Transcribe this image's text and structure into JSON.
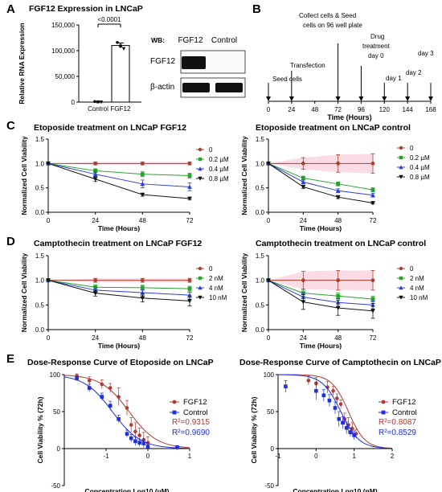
{
  "panels": {
    "A": "A",
    "B": "B",
    "C": "C",
    "D": "D",
    "E": "E"
  },
  "chart_data": [
    {
      "type": "bar",
      "title": "FGF12 Expression in LNCaP",
      "ylabel": "Relative RNA Expression",
      "categories": [
        "Control",
        "FGF12"
      ],
      "values": [
        1,
        110000
      ],
      "points": [
        [
          1000,
          500,
          200
        ],
        [
          116000,
          109000,
          104000
        ]
      ],
      "errors": [
        500,
        5000
      ],
      "ylim": [
        0,
        150000
      ],
      "yticks": [
        "0",
        "50,000",
        "100,000",
        "150,000"
      ],
      "annotation": "<0.0001"
    },
    {
      "type": "table",
      "title": "Western blot",
      "wb_label": "WB:",
      "lanes": [
        "FGF12",
        "Control"
      ],
      "rows": [
        "FGF12",
        "β-actin"
      ]
    },
    {
      "type": "table",
      "title": "Timeline",
      "xlabel": "Time (Hours)",
      "ticks": [
        0,
        24,
        48,
        72,
        96,
        120,
        144,
        168
      ],
      "events": [
        {
          "hour": 0,
          "label": "Seed cells"
        },
        {
          "hour": 24,
          "label": "Transfection"
        },
        {
          "hour": 72,
          "label": "Collect cells & Seed cells on 96 well plate"
        },
        {
          "hour": 96,
          "label": "Drug treatment day 0"
        },
        {
          "hour": 120,
          "label": "day 1"
        },
        {
          "hour": 144,
          "label": "day 2"
        },
        {
          "hour": 168,
          "label": "day 3"
        }
      ]
    },
    {
      "type": "line",
      "title": "Etoposide treatment on LNCaP FGF12",
      "xlabel": "Time (Hours)",
      "ylabel": "Normalized Cell Viability",
      "x": [
        0,
        24,
        48,
        72
      ],
      "ylim": [
        0,
        1.5
      ],
      "yticks": [
        "0.0",
        "0.5",
        "1.0",
        "1.5"
      ],
      "series": [
        {
          "name": "0",
          "values": [
            1.0,
            1.0,
            1.0,
            1.0
          ],
          "errors": [
            0,
            0.03,
            0.03,
            0.03
          ]
        },
        {
          "name": "0.2 µM",
          "values": [
            1.0,
            0.85,
            0.78,
            0.75
          ],
          "errors": [
            0,
            0.04,
            0.05,
            0.05
          ]
        },
        {
          "name": "0.4 µM",
          "values": [
            1.0,
            0.78,
            0.58,
            0.52
          ],
          "errors": [
            0,
            0.05,
            0.08,
            0.08
          ]
        },
        {
          "name": "0.8 µM",
          "values": [
            1.0,
            0.68,
            0.36,
            0.28
          ],
          "errors": [
            0,
            0.05,
            0.03,
            0.02
          ]
        }
      ]
    },
    {
      "type": "line",
      "title": "Etoposide treatment on LNCaP control",
      "xlabel": "Time (Hours)",
      "ylabel": "Normalized Cell Viability",
      "x": [
        0,
        24,
        48,
        72
      ],
      "ylim": [
        0,
        1.5
      ],
      "yticks": [
        "0.0",
        "0.5",
        "1.0",
        "1.5"
      ],
      "series": [
        {
          "name": "0",
          "values": [
            1.0,
            1.0,
            1.0,
            1.0
          ],
          "errors": [
            0,
            0.12,
            0.18,
            0.2
          ]
        },
        {
          "name": "0.2 µM",
          "values": [
            1.0,
            0.7,
            0.58,
            0.46
          ],
          "errors": [
            0,
            0.04,
            0.04,
            0.04
          ]
        },
        {
          "name": "0.4 µM",
          "values": [
            1.0,
            0.62,
            0.44,
            0.35
          ],
          "errors": [
            0,
            0.04,
            0.04,
            0.04
          ]
        },
        {
          "name": "0.8 µM",
          "values": [
            1.0,
            0.52,
            0.31,
            0.19
          ],
          "errors": [
            0,
            0.03,
            0.03,
            0.02
          ]
        }
      ]
    },
    {
      "type": "line",
      "title": "Camptothecin treatment on LNCaP FGF12",
      "xlabel": "Time (Hours)",
      "ylabel": "Normalized Cell Viability",
      "x": [
        0,
        24,
        48,
        72
      ],
      "ylim": [
        0,
        1.5
      ],
      "yticks": [
        "0.0",
        "0.5",
        "1.0",
        "1.5"
      ],
      "series": [
        {
          "name": "0",
          "values": [
            1.0,
            1.0,
            1.0,
            1.0
          ],
          "errors": [
            0,
            0.04,
            0.04,
            0.04
          ]
        },
        {
          "name": "2 nM",
          "values": [
            1.0,
            0.86,
            0.85,
            0.83
          ],
          "errors": [
            0,
            0.05,
            0.05,
            0.05
          ]
        },
        {
          "name": "4 nM",
          "values": [
            1.0,
            0.8,
            0.75,
            0.7
          ],
          "errors": [
            0,
            0.05,
            0.06,
            0.06
          ]
        },
        {
          "name": "10 nM",
          "values": [
            1.0,
            0.74,
            0.64,
            0.58
          ],
          "errors": [
            0,
            0.06,
            0.08,
            0.1
          ]
        }
      ]
    },
    {
      "type": "line",
      "title": "Camptothecin treatment on LNCaP control",
      "xlabel": "Time (Hours)",
      "ylabel": "Normalized Cell Viability",
      "x": [
        0,
        24,
        48,
        72
      ],
      "ylim": [
        0,
        1.5
      ],
      "yticks": [
        "0.0",
        "0.5",
        "1.0",
        "1.5"
      ],
      "series": [
        {
          "name": "0",
          "values": [
            1.0,
            1.0,
            1.0,
            1.0
          ],
          "errors": [
            0,
            0.18,
            0.2,
            0.2
          ]
        },
        {
          "name": "2 nM",
          "values": [
            1.0,
            0.74,
            0.68,
            0.62
          ],
          "errors": [
            0,
            0.06,
            0.06,
            0.06
          ]
        },
        {
          "name": "4 nM",
          "values": [
            1.0,
            0.66,
            0.55,
            0.5
          ],
          "errors": [
            0,
            0.08,
            0.08,
            0.08
          ]
        },
        {
          "name": "10 nM",
          "values": [
            1.0,
            0.56,
            0.44,
            0.38
          ],
          "errors": [
            0,
            0.15,
            0.15,
            0.15
          ]
        }
      ]
    },
    {
      "type": "scatter",
      "title": "Dose-Response Curve of Etoposide on LNCaP",
      "xlabel": "Concentration Log10 (µM)",
      "ylabel": "Cell Viability % (72h)",
      "xlim": [
        -2.0,
        1.0
      ],
      "ylim": [
        -50,
        100
      ],
      "xticks": [
        "-1",
        "0",
        "1"
      ],
      "yticks": [
        "-50",
        "0",
        "50",
        "100"
      ],
      "series": [
        {
          "name": "FGF12",
          "r2": "R²=0.9315",
          "points": [
            [
              -1.7,
              98
            ],
            [
              -1.4,
              92
            ],
            [
              -1.1,
              87
            ],
            [
              -0.9,
              82
            ],
            [
              -0.7,
              70
            ],
            [
              -0.5,
              55
            ],
            [
              -0.4,
              32
            ],
            [
              -0.3,
              23
            ],
            [
              -0.2,
              18
            ],
            [
              -0.1,
              12
            ],
            [
              0.0,
              8
            ],
            [
              0.7,
              1
            ]
          ],
          "errors": [
            3,
            5,
            6,
            6,
            12,
            10,
            10,
            12,
            10,
            10,
            8,
            2
          ],
          "fit": {
            "top": 100,
            "bottom": 0,
            "ic50": -0.45,
            "hill": 1.3
          }
        },
        {
          "name": "Control",
          "r2": "R²=0.9690",
          "points": [
            [
              -1.7,
              95
            ],
            [
              -1.4,
              82
            ],
            [
              -1.1,
              70
            ],
            [
              -0.9,
              58
            ],
            [
              -0.7,
              40
            ],
            [
              -0.5,
              20
            ],
            [
              -0.4,
              14
            ],
            [
              -0.3,
              10
            ],
            [
              -0.2,
              8
            ],
            [
              -0.1,
              7
            ],
            [
              0.0,
              3
            ],
            [
              0.7,
              2
            ]
          ],
          "errors": [
            3,
            5,
            5,
            6,
            5,
            5,
            5,
            6,
            5,
            5,
            4,
            2
          ],
          "fit": {
            "top": 100,
            "bottom": 0,
            "ic50": -0.85,
            "hill": 1.3
          }
        }
      ]
    },
    {
      "type": "scatter",
      "title": "Dose-Response Curve of Camptothecin on LNCaP",
      "xlabel": "Concentration Log10 (nM)",
      "ylabel": "Cell Viability % (72h)",
      "xlim": [
        -1.0,
        2.0
      ],
      "ylim": [
        -50,
        100
      ],
      "xticks": [
        "-1",
        "0",
        "1",
        "2"
      ],
      "yticks": [
        "-50",
        "0",
        "50",
        "100"
      ],
      "series": [
        {
          "name": "FGF12",
          "r2": "R²=0.8087",
          "points": [
            [
              -0.2,
              92
            ],
            [
              0.0,
              88
            ],
            [
              0.3,
              83
            ],
            [
              0.45,
              78
            ],
            [
              0.55,
              68
            ],
            [
              0.65,
              60
            ],
            [
              0.75,
              40
            ],
            [
              0.85,
              32
            ],
            [
              0.95,
              27
            ],
            [
              1.05,
              20
            ]
          ],
          "errors": [
            6,
            8,
            8,
            6,
            6,
            6,
            8,
            10,
            8,
            6
          ],
          "fit": {
            "top": 100,
            "bottom": 0,
            "ic50": 0.85,
            "hill": 2.0
          }
        },
        {
          "name": "Control",
          "r2": "R²=0.8529",
          "points": [
            [
              -0.8,
              84
            ],
            [
              0.0,
              78
            ],
            [
              0.2,
              72
            ],
            [
              0.35,
              65
            ],
            [
              0.5,
              55
            ],
            [
              0.6,
              40
            ],
            [
              0.7,
              35
            ],
            [
              0.8,
              28
            ],
            [
              0.9,
              22
            ],
            [
              1.0,
              18
            ]
          ],
          "errors": [
            8,
            12,
            8,
            8,
            8,
            10,
            8,
            8,
            6,
            6
          ],
          "fit": {
            "top": 100,
            "bottom": 0,
            "ic50": 0.65,
            "hill": 1.8
          }
        }
      ]
    }
  ],
  "colors": {
    "s0": "#a8412f",
    "s1": "#27a32b",
    "s2": "#2b3fe0",
    "s3": "#111111",
    "fgf12": "#b03a2e",
    "control": "#1b2fe6",
    "band": "#f9c5d2"
  }
}
